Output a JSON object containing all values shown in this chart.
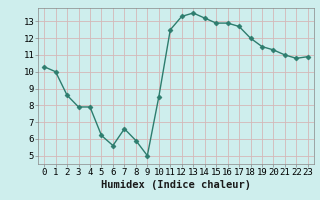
{
  "x": [
    0,
    1,
    2,
    3,
    4,
    5,
    6,
    7,
    8,
    9,
    10,
    11,
    12,
    13,
    14,
    15,
    16,
    17,
    18,
    19,
    20,
    21,
    22,
    23
  ],
  "y": [
    10.3,
    10.0,
    8.6,
    7.9,
    7.9,
    6.2,
    5.6,
    6.6,
    5.9,
    5.0,
    8.5,
    12.5,
    13.3,
    13.5,
    13.2,
    12.9,
    12.9,
    12.7,
    12.0,
    11.5,
    11.3,
    11.0,
    10.8,
    10.9
  ],
  "line_color": "#2d7d6e",
  "marker": "D",
  "marker_size": 2.5,
  "bg_color": "#ceeeed",
  "grid_color": "#d4b8b8",
  "xlabel": "Humidex (Indice chaleur)",
  "ylim": [
    4.5,
    13.8
  ],
  "xlim": [
    -0.5,
    23.5
  ],
  "yticks": [
    5,
    6,
    7,
    8,
    9,
    10,
    11,
    12,
    13
  ],
  "xticks": [
    0,
    1,
    2,
    3,
    4,
    5,
    6,
    7,
    8,
    9,
    10,
    11,
    12,
    13,
    14,
    15,
    16,
    17,
    18,
    19,
    20,
    21,
    22,
    23
  ],
  "xtick_labels": [
    "0",
    "1",
    "2",
    "3",
    "4",
    "5",
    "6",
    "7",
    "8",
    "9",
    "10",
    "11",
    "12",
    "13",
    "14",
    "15",
    "16",
    "17",
    "18",
    "19",
    "20",
    "21",
    "22",
    "23"
  ],
  "font_color": "#1a1a1a",
  "tick_font_size": 6.5,
  "xlabel_font_size": 7.5,
  "spine_color": "#888888",
  "linewidth": 1.0
}
